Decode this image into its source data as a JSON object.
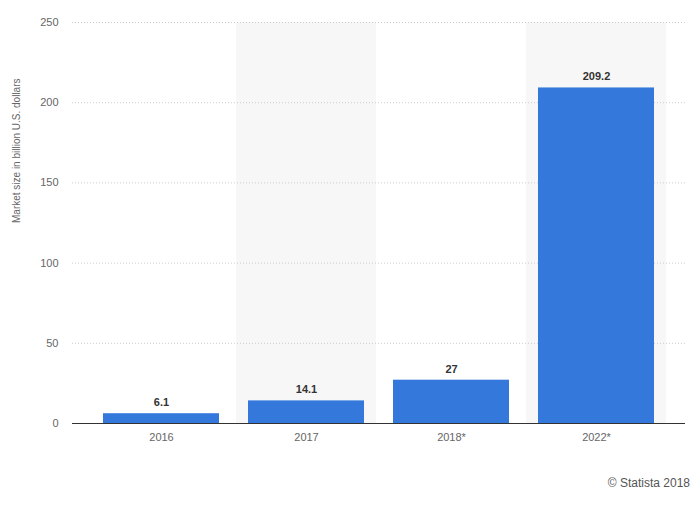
{
  "chart_data": {
    "type": "bar",
    "y_label": "Market size in billion U.S. dollars",
    "caption": "© Statista 2018",
    "categories": [
      "2016",
      "2017",
      "2018*",
      "2022*"
    ],
    "values": [
      6.1,
      14.1,
      27,
      209.2
    ],
    "color": "#3578dc",
    "ylim": [
      0,
      250
    ],
    "yticks": [
      0,
      50,
      100,
      150,
      200,
      250
    ],
    "grid": true,
    "data_labels": true
  }
}
